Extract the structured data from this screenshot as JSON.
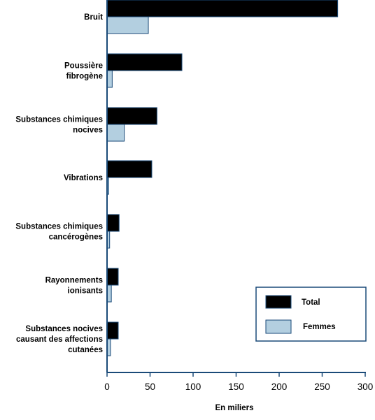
{
  "chart_data": {
    "type": "bar",
    "orientation": "horizontal",
    "categories": [
      [
        "Bruit"
      ],
      [
        "Poussière",
        "fibrogène"
      ],
      [
        "Substances chimiques",
        "nocives"
      ],
      [
        "Vibrations"
      ],
      [
        "Substances chimiques",
        "cancérogènes"
      ],
      [
        "Rayonnements",
        "ionisants"
      ],
      [
        "Substances nocives",
        "causant des affections",
        "cutanées"
      ]
    ],
    "series": [
      {
        "name": "Total",
        "values": [
          268,
          87,
          58,
          52,
          14,
          13,
          13
        ],
        "color": "#000000"
      },
      {
        "name": "Femmes",
        "values": [
          48,
          6,
          20,
          2,
          3,
          5,
          4
        ],
        "color": "#b3cfe0"
      }
    ],
    "xlabel": "En miliers",
    "xlim": [
      0,
      300
    ],
    "xticks": [
      0,
      50,
      100,
      150,
      200,
      250,
      300
    ],
    "grid": false,
    "legend_position": "bottom-right",
    "colors": {
      "axis": "#1a4a78",
      "total": "#000000",
      "femmes": "#b3cfe0",
      "bar_edge": "#1a4a78"
    }
  }
}
